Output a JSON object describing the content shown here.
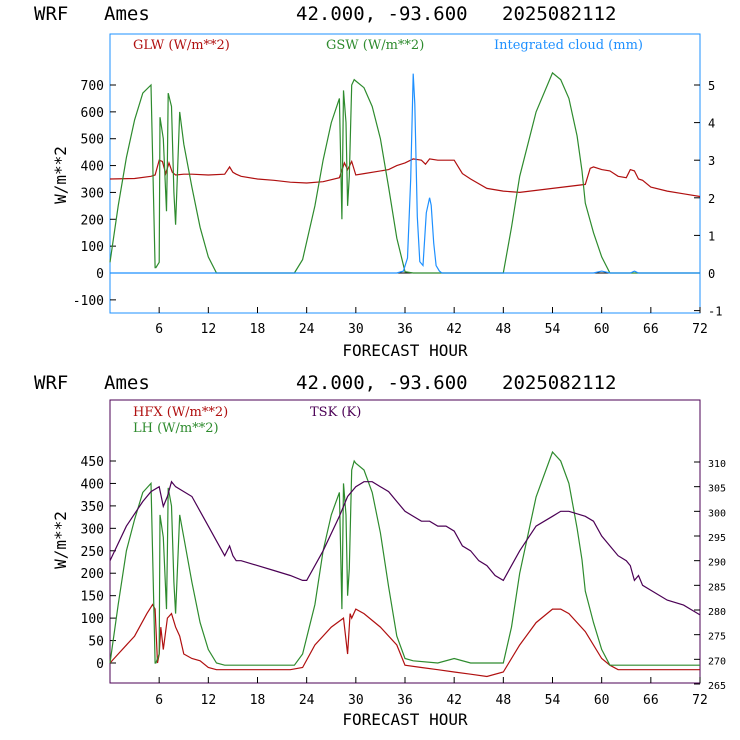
{
  "chart_data": [
    {
      "type": "line",
      "header": {
        "model": "WRF",
        "location": "Ames",
        "coords": "42.000, -93.600",
        "init": "2025082112"
      },
      "xlabel": "FORECAST HOUR",
      "ylabel": "W/m**2",
      "xlim": [
        0,
        72
      ],
      "x_ticks": [
        "6",
        "12",
        "18",
        "24",
        "30",
        "36",
        "42",
        "48",
        "54",
        "60",
        "66",
        "72"
      ],
      "ylim": [
        -150,
        850
      ],
      "y_ticks": [
        "-100",
        "0",
        "100",
        "200",
        "300",
        "400",
        "500",
        "600",
        "700"
      ],
      "y2lim": [
        -1,
        6
      ],
      "y2_ticks": [
        "-1",
        "0",
        "1",
        "2",
        "3",
        "4",
        "5"
      ],
      "series": [
        {
          "name": "GLW (W/m**2)",
          "color": "#b01010",
          "axis": "left",
          "x": [
            0,
            3,
            5,
            5.5,
            6,
            6.4,
            6.8,
            7.2,
            7.6,
            8,
            9,
            10,
            12,
            14,
            14.6,
            15,
            15.4,
            16,
            18,
            20,
            22,
            24,
            26,
            28,
            28.6,
            29,
            29.5,
            30,
            31,
            34,
            35,
            36,
            37,
            38,
            38.5,
            39,
            40,
            41,
            42,
            43,
            44,
            46,
            48,
            50,
            54,
            58,
            58.6,
            59,
            60,
            61,
            62,
            63,
            63.5,
            64,
            64.5,
            65,
            66,
            68,
            70,
            72
          ],
          "values": [
            350,
            352,
            360,
            365,
            420,
            415,
            370,
            410,
            375,
            365,
            368,
            368,
            365,
            368,
            395,
            375,
            368,
            360,
            350,
            345,
            338,
            335,
            340,
            355,
            410,
            385,
            415,
            365,
            370,
            385,
            400,
            410,
            425,
            420,
            405,
            425,
            420,
            420,
            420,
            370,
            350,
            315,
            305,
            300,
            315,
            330,
            390,
            395,
            385,
            380,
            360,
            355,
            385,
            380,
            350,
            345,
            320,
            305,
            295,
            285
          ]
        },
        {
          "name": "GSW (W/m**2)",
          "color": "#2e8b2e",
          "axis": "left",
          "x": [
            0,
            1,
            2,
            3,
            4,
            5,
            5.5,
            5.6,
            6,
            6.1,
            6.5,
            6.9,
            7,
            7.1,
            7.5,
            7.8,
            8,
            8.5,
            9,
            10,
            11,
            12,
            13,
            14,
            18,
            22.5,
            23.5,
            25,
            26,
            27,
            28,
            28.3,
            28.5,
            28.8,
            29,
            29.2,
            29.5,
            29.8,
            30,
            31,
            32,
            33,
            34,
            35,
            36,
            37,
            48,
            49,
            50,
            52,
            54,
            55,
            56,
            57,
            57.6,
            58,
            59,
            60,
            61,
            72
          ],
          "values": [
            40,
            250,
            430,
            570,
            670,
            700,
            20,
            20,
            40,
            580,
            500,
            230,
            420,
            670,
            620,
            300,
            180,
            600,
            480,
            320,
            170,
            60,
            0,
            0,
            0,
            0,
            50,
            250,
            420,
            560,
            650,
            200,
            680,
            560,
            250,
            360,
            700,
            720,
            715,
            690,
            620,
            500,
            320,
            130,
            5,
            0,
            0,
            170,
            360,
            600,
            745,
            720,
            650,
            510,
            380,
            260,
            150,
            60,
            0,
            0
          ]
        },
        {
          "name": "Integrated cloud (mm)",
          "color": "#1e90ff",
          "axis": "right",
          "x": [
            0,
            35,
            35.8,
            36.3,
            36.7,
            37,
            37.2,
            37.5,
            37.8,
            38.2,
            38.6,
            39,
            39.2,
            39.5,
            39.8,
            40.2,
            40.5,
            41,
            59,
            60,
            61,
            63.5,
            64,
            64.5,
            72
          ],
          "values": [
            0,
            0,
            0.05,
            0.4,
            2.5,
            5.3,
            4.5,
            1.5,
            0.3,
            0.2,
            1.6,
            2.0,
            1.8,
            0.8,
            0.2,
            0.05,
            0,
            0,
            0,
            0.05,
            0,
            0,
            0.05,
            0,
            0
          ]
        }
      ]
    },
    {
      "type": "line",
      "header": {
        "model": "WRF",
        "location": "Ames",
        "coords": "42.000, -93.600",
        "init": "2025082112"
      },
      "xlabel": "FORECAST HOUR",
      "ylabel": "W/m**2",
      "xlim": [
        0,
        72
      ],
      "x_ticks": [
        "6",
        "12",
        "18",
        "24",
        "30",
        "36",
        "42",
        "48",
        "54",
        "60",
        "66",
        "72"
      ],
      "ylim": [
        -50,
        550
      ],
      "y_ticks": [
        "0",
        "50",
        "100",
        "150",
        "200",
        "250",
        "300",
        "350",
        "400",
        "450"
      ],
      "y2lim": [
        265,
        325
      ],
      "y2_ticks": [
        "265",
        "270",
        "275",
        "280",
        "285",
        "290",
        "295",
        "300",
        "305",
        "310"
      ],
      "series": [
        {
          "name": "HFX (W/m**2)",
          "color": "#b01010",
          "axis": "left",
          "x": [
            0,
            1,
            3,
            4.5,
            5.2,
            5.5,
            5.8,
            6,
            6.2,
            6.5,
            7,
            7.5,
            8,
            8.5,
            9,
            10,
            11,
            12,
            13,
            14,
            16,
            18,
            20,
            22,
            23.5,
            25,
            27,
            28.5,
            29,
            29.3,
            29.5,
            30,
            31,
            33,
            35,
            36,
            38,
            40,
            42,
            44,
            46,
            48,
            50,
            52,
            54,
            55,
            56,
            58,
            60,
            61,
            62,
            64,
            66,
            68,
            70,
            72
          ],
          "values": [
            0,
            20,
            60,
            110,
            130,
            120,
            0,
            20,
            80,
            30,
            100,
            110,
            80,
            60,
            20,
            10,
            5,
            -10,
            -15,
            -15,
            -15,
            -15,
            -15,
            -15,
            -10,
            40,
            80,
            100,
            20,
            110,
            100,
            120,
            110,
            80,
            40,
            -5,
            -10,
            -15,
            -20,
            -25,
            -30,
            -20,
            40,
            90,
            120,
            120,
            110,
            70,
            10,
            -5,
            -15,
            -15,
            -15,
            -15,
            -15,
            -15
          ]
        },
        {
          "name": "LH  (W/m**2)",
          "color": "#2e8b2e",
          "axis": "left",
          "x": [
            0,
            1,
            2,
            3,
            4,
            5,
            5.5,
            5.6,
            6,
            6.1,
            6.5,
            6.9,
            7,
            7.1,
            7.5,
            7.8,
            8,
            8.5,
            9,
            10,
            11,
            12,
            13,
            14,
            18,
            22.5,
            23.5,
            25,
            26,
            27,
            28,
            28.3,
            28.5,
            28.8,
            29,
            29.2,
            29.5,
            29.8,
            30,
            31,
            32,
            33,
            34,
            35,
            36,
            37,
            40,
            42,
            44,
            48,
            49,
            50,
            52,
            54,
            55,
            56,
            57,
            57.6,
            58,
            59,
            60,
            61,
            72
          ],
          "values": [
            0,
            130,
            250,
            320,
            380,
            400,
            0,
            0,
            20,
            330,
            280,
            120,
            250,
            390,
            350,
            180,
            110,
            330,
            280,
            180,
            90,
            30,
            0,
            -5,
            -5,
            -5,
            20,
            130,
            250,
            330,
            380,
            120,
            400,
            330,
            150,
            210,
            430,
            450,
            445,
            430,
            380,
            290,
            170,
            60,
            10,
            5,
            0,
            10,
            0,
            0,
            80,
            200,
            370,
            470,
            450,
            400,
            300,
            230,
            160,
            90,
            30,
            -5,
            -5
          ]
        },
        {
          "name": "TSK (K)",
          "color": "#4b0055",
          "axis": "right",
          "x": [
            0,
            2,
            4,
            5,
            6,
            6.5,
            7,
            7.5,
            8,
            9,
            10,
            11,
            12,
            13,
            14,
            14.6,
            15,
            15.4,
            16,
            18,
            20,
            22,
            23.5,
            24,
            26,
            28,
            29,
            30,
            31,
            32,
            33,
            34,
            35,
            36,
            37,
            38,
            39,
            40,
            41,
            42,
            43,
            44,
            45,
            46,
            47,
            48,
            50,
            52,
            54,
            55,
            56,
            58,
            59,
            60,
            61,
            62,
            63,
            63.5,
            64,
            64.5,
            65,
            66,
            68,
            70,
            71,
            72
          ],
          "values": [
            290,
            297,
            302,
            304,
            305,
            301,
            303,
            306,
            305,
            304,
            303,
            300,
            297,
            294,
            291,
            293,
            291,
            290,
            290,
            289,
            288,
            287,
            286,
            286,
            292,
            299,
            303,
            305,
            306,
            306,
            305,
            304,
            302,
            300,
            299,
            298,
            298,
            297,
            297,
            296,
            293,
            292,
            290,
            289,
            287,
            286,
            292,
            297,
            299,
            300,
            300,
            299,
            298,
            295,
            293,
            291,
            290,
            289,
            286,
            287,
            285,
            284,
            282,
            281,
            280,
            279
          ]
        }
      ]
    }
  ]
}
